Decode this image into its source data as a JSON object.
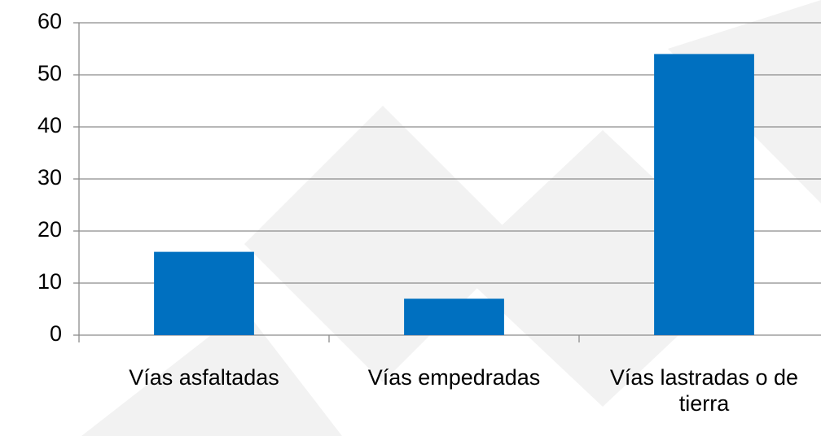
{
  "chart_data": {
    "type": "bar",
    "categories": [
      "Vías asfaltadas",
      "Vías empedradas",
      "Vías lastradas o de tierra"
    ],
    "values": [
      16,
      7,
      54
    ],
    "color": "#0070c0",
    "ylim": [
      0,
      60
    ],
    "yticks": [
      0,
      10,
      20,
      30,
      40,
      50,
      60
    ],
    "grid": true
  }
}
